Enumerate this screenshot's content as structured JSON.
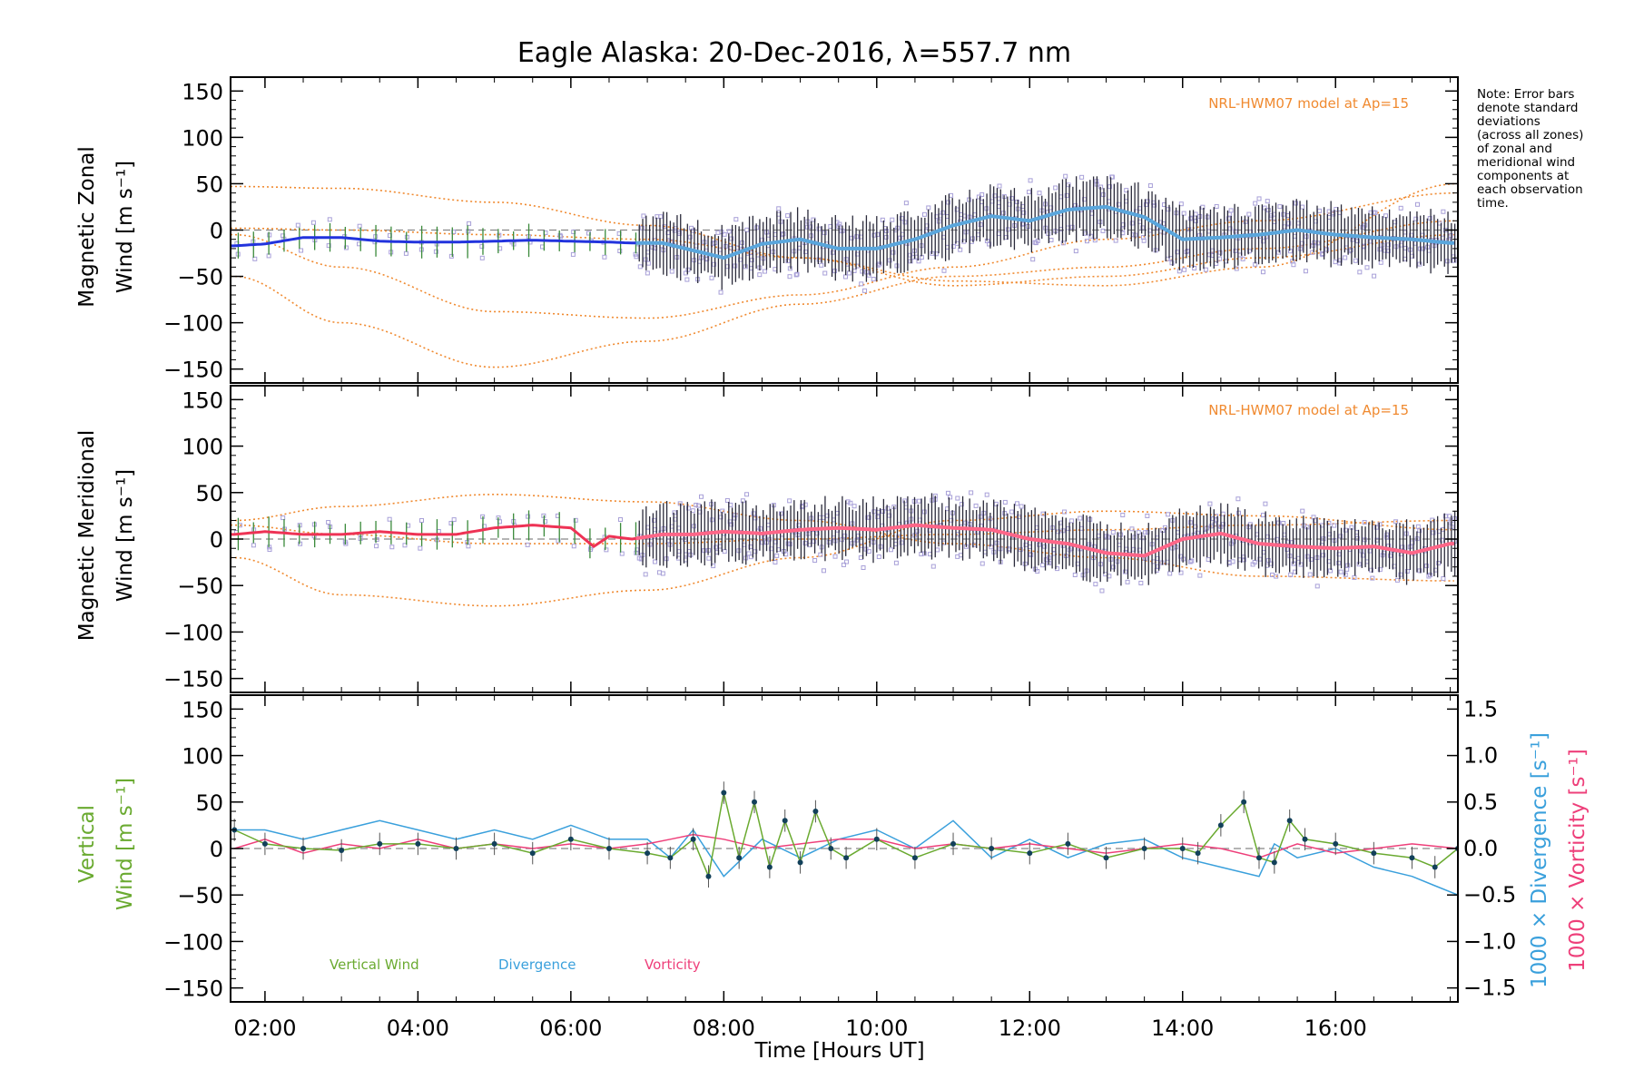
{
  "title": "Eagle Alaska: 20-Dec-2016, λ=557.7 nm",
  "note_lines": [
    "Note: Error bars",
    "denote standard",
    "deviations",
    "(across all zones)",
    "of zonal and",
    "meridional wind",
    "components at",
    "each observation",
    "time."
  ],
  "xaxis": {
    "label": "Time [Hours UT]",
    "range": [
      1.55,
      17.6
    ],
    "ticks": [
      {
        "v": 2,
        "label": "02:00"
      },
      {
        "v": 4,
        "label": "04:00"
      },
      {
        "v": 6,
        "label": "06:00"
      },
      {
        "v": 8,
        "label": "08:00"
      },
      {
        "v": 10,
        "label": "10:00"
      },
      {
        "v": 12,
        "label": "12:00"
      },
      {
        "v": 14,
        "label": "14:00"
      },
      {
        "v": 16,
        "label": "16:00"
      }
    ]
  },
  "colors": {
    "zonal": "#2233dd",
    "zonal_dense": "#5aa6dc",
    "meridional": "#ee3355",
    "meridional_dense": "#ff6688",
    "model": "#f08a30",
    "scatter": "#a8a0d8",
    "errorbar": "#20405a",
    "vertical": "#6aaa30",
    "divergence": "#3aa0dc",
    "vorticity": "#ee3f7a",
    "point": "#12405a"
  },
  "chart_data": [
    {
      "type": "line",
      "panel": "zonal",
      "ylabel_line1": "Magnetic Zonal",
      "ylabel_line2": "Wind [m s⁻¹]",
      "ylim": [
        -165,
        165
      ],
      "yticks": [
        -150,
        -100,
        -50,
        0,
        50,
        100,
        150
      ],
      "model_label": "NRL-HWM07 model at Ap=15",
      "series": [
        {
          "x": [
            1.6,
            2.0,
            2.5,
            3.0,
            3.5,
            4.0,
            4.5,
            5.0,
            5.5,
            6.0,
            6.5,
            6.8,
            7.2,
            7.6,
            8.0,
            8.5,
            9.0,
            9.5,
            10.0,
            10.5,
            11.0,
            11.5,
            12.0,
            12.5,
            13.0,
            13.5,
            14.0,
            14.5,
            15.0,
            15.5,
            16.0,
            16.5,
            17.0,
            17.5
          ],
          "y": [
            -17,
            -15,
            -8,
            -8,
            -12,
            -13,
            -13,
            -12,
            -11,
            -12,
            -13,
            -14,
            -14,
            -22,
            -30,
            -15,
            -10,
            -20,
            -20,
            -10,
            5,
            15,
            10,
            22,
            25,
            14,
            -10,
            -8,
            -5,
            0,
            -5,
            -8,
            -10,
            -14
          ]
        },
        {
          "x": [
            1.6,
            3.0,
            5.0,
            7.0,
            9.0,
            11.0,
            13.0,
            15.0,
            17.6
          ],
          "y": [
            47,
            45,
            30,
            5,
            -30,
            -55,
            -60,
            -40,
            50
          ]
        },
        {
          "x": [
            1.6,
            3.0,
            5.0,
            7.0,
            9.0,
            11.0,
            13.0,
            15.0,
            17.6
          ],
          "y": [
            -50,
            -100,
            -148,
            -120,
            -80,
            -50,
            -40,
            -20,
            10
          ]
        },
        {
          "x": [
            1.6,
            3.0,
            5.0,
            7.0,
            9.0,
            11.0,
            13.0,
            15.0,
            17.6
          ],
          "y": [
            -5,
            -40,
            -88,
            -95,
            -70,
            -40,
            -10,
            10,
            40
          ]
        },
        {
          "x": [
            1.6,
            3.0,
            5.0,
            7.0,
            9.0,
            11.0,
            13.0,
            15.0,
            17.6
          ],
          "y": [
            2,
            0,
            -5,
            -10,
            -30,
            -60,
            -50,
            -30,
            -5
          ]
        }
      ]
    },
    {
      "type": "line",
      "panel": "meridional",
      "ylabel_line1": "Magnetic Meridional",
      "ylabel_line2": "Wind [m s⁻¹]",
      "ylim": [
        -165,
        165
      ],
      "yticks": [
        -150,
        -100,
        -50,
        0,
        50,
        100,
        150
      ],
      "model_label": "NRL-HWM07 model at Ap=15",
      "series": [
        {
          "x": [
            1.6,
            2.0,
            2.5,
            3.0,
            3.5,
            4.0,
            4.5,
            5.0,
            5.5,
            6.0,
            6.3,
            6.5,
            6.8,
            7.2,
            7.6,
            8.0,
            8.5,
            9.0,
            9.5,
            10.0,
            10.5,
            11.0,
            11.5,
            12.0,
            12.5,
            13.0,
            13.5,
            14.0,
            14.5,
            15.0,
            15.5,
            16.0,
            16.5,
            17.0,
            17.5
          ],
          "y": [
            5,
            8,
            5,
            5,
            8,
            5,
            5,
            12,
            15,
            12,
            -8,
            3,
            0,
            5,
            5,
            8,
            6,
            10,
            12,
            10,
            15,
            12,
            10,
            0,
            -5,
            -15,
            -18,
            0,
            6,
            -5,
            -8,
            -10,
            -8,
            -15,
            -5
          ]
        },
        {
          "x": [
            1.6,
            3.0,
            5.0,
            7.0,
            9.0,
            11.0,
            13.0,
            15.0,
            17.6
          ],
          "y": [
            -20,
            -60,
            -72,
            -55,
            -20,
            20,
            30,
            25,
            10
          ]
        },
        {
          "x": [
            1.6,
            3.0,
            5.0,
            7.0,
            9.0,
            11.0,
            13.0,
            15.0,
            17.6
          ],
          "y": [
            20,
            35,
            48,
            40,
            20,
            -5,
            -20,
            -40,
            -45
          ]
        },
        {
          "x": [
            1.6,
            3.0,
            5.0,
            7.0,
            9.0,
            11.0,
            13.0,
            15.0,
            17.6
          ],
          "y": [
            15,
            5,
            -5,
            -5,
            0,
            5,
            10,
            15,
            20
          ]
        }
      ]
    },
    {
      "type": "line",
      "panel": "vertical",
      "ylabel_line1": "Vertical",
      "ylabel_line2": "Wind [m s⁻¹]",
      "ylim": [
        -165,
        165
      ],
      "yticks": [
        -150,
        -100,
        -50,
        0,
        50,
        100,
        150
      ],
      "y2label_divergence": "1000 × Divergence [s⁻¹]",
      "y2label_vorticity": "1000 × Vorticity [s⁻¹]",
      "y2lim": [
        -1.65,
        1.65
      ],
      "y2ticks": [
        {
          "v": -1.5,
          "label": "−1.5"
        },
        {
          "v": -1.0,
          "label": "−1.0"
        },
        {
          "v": -0.5,
          "label": "−0.5"
        },
        {
          "v": 0.0,
          "label": "0.0"
        },
        {
          "v": 0.5,
          "label": "0.5"
        },
        {
          "v": 1.0,
          "label": "1.0"
        },
        {
          "v": 1.5,
          "label": "1.5"
        }
      ],
      "legend": [
        "Vertical Wind",
        "Divergence",
        "Vorticity"
      ],
      "series": [
        {
          "name": "Vertical Wind",
          "x": [
            1.6,
            2.0,
            2.5,
            3.0,
            3.5,
            4.0,
            4.5,
            5.0,
            5.5,
            6.0,
            6.5,
            7.0,
            7.3,
            7.6,
            7.8,
            8.0,
            8.2,
            8.4,
            8.6,
            8.8,
            9.0,
            9.2,
            9.4,
            9.6,
            10.0,
            10.5,
            11.0,
            11.5,
            12.0,
            12.5,
            13.0,
            13.5,
            14.0,
            14.2,
            14.5,
            14.8,
            15.0,
            15.2,
            15.4,
            15.6,
            16.0,
            16.5,
            17.0,
            17.3,
            17.6
          ],
          "y": [
            20,
            5,
            0,
            -2,
            5,
            5,
            0,
            5,
            -5,
            10,
            0,
            -5,
            -10,
            10,
            -30,
            60,
            -10,
            50,
            -20,
            30,
            -15,
            40,
            0,
            -10,
            10,
            -10,
            5,
            0,
            -5,
            5,
            -10,
            0,
            0,
            -5,
            25,
            50,
            -10,
            -15,
            30,
            10,
            5,
            -5,
            -10,
            -20,
            0
          ]
        },
        {
          "name": "Divergence",
          "x": [
            1.6,
            2.0,
            2.5,
            3.0,
            3.5,
            4.0,
            4.5,
            5.0,
            5.5,
            6.0,
            6.5,
            7.0,
            7.3,
            7.6,
            8.0,
            8.5,
            9.0,
            9.5,
            10.0,
            10.5,
            11.0,
            11.5,
            12.0,
            12.5,
            13.0,
            13.5,
            14.0,
            14.5,
            15.0,
            15.2,
            15.5,
            16.0,
            16.5,
            17.0,
            17.3,
            17.6
          ],
          "y": [
            0.2,
            0.2,
            0.1,
            0.2,
            0.3,
            0.2,
            0.1,
            0.2,
            0.1,
            0.25,
            0.1,
            0.1,
            -0.1,
            0.2,
            -0.3,
            0.1,
            -0.1,
            0.1,
            0.2,
            0.0,
            0.3,
            -0.1,
            0.1,
            -0.1,
            0.05,
            0.1,
            -0.1,
            -0.2,
            -0.3,
            0.05,
            -0.1,
            0.0,
            -0.2,
            -0.3,
            -0.4,
            -0.5
          ]
        },
        {
          "name": "Vorticity",
          "x": [
            1.6,
            2.0,
            2.5,
            3.0,
            3.5,
            4.0,
            4.5,
            5.0,
            5.5,
            6.0,
            6.5,
            7.0,
            7.3,
            7.6,
            8.0,
            8.5,
            9.0,
            9.5,
            10.0,
            10.5,
            11.0,
            11.5,
            12.0,
            12.5,
            13.0,
            13.5,
            14.0,
            14.5,
            15.0,
            15.5,
            16.0,
            16.5,
            17.0,
            17.6
          ],
          "y": [
            0.0,
            0.1,
            -0.05,
            0.05,
            0.0,
            0.1,
            0.0,
            0.05,
            0.0,
            0.05,
            0.0,
            0.05,
            0.1,
            0.15,
            0.1,
            0.0,
            0.05,
            0.1,
            0.1,
            0.0,
            0.05,
            0.0,
            0.05,
            0.0,
            -0.05,
            0.0,
            0.05,
            0.0,
            -0.1,
            0.05,
            -0.05,
            0.0,
            0.05,
            0.0
          ]
        }
      ]
    }
  ]
}
